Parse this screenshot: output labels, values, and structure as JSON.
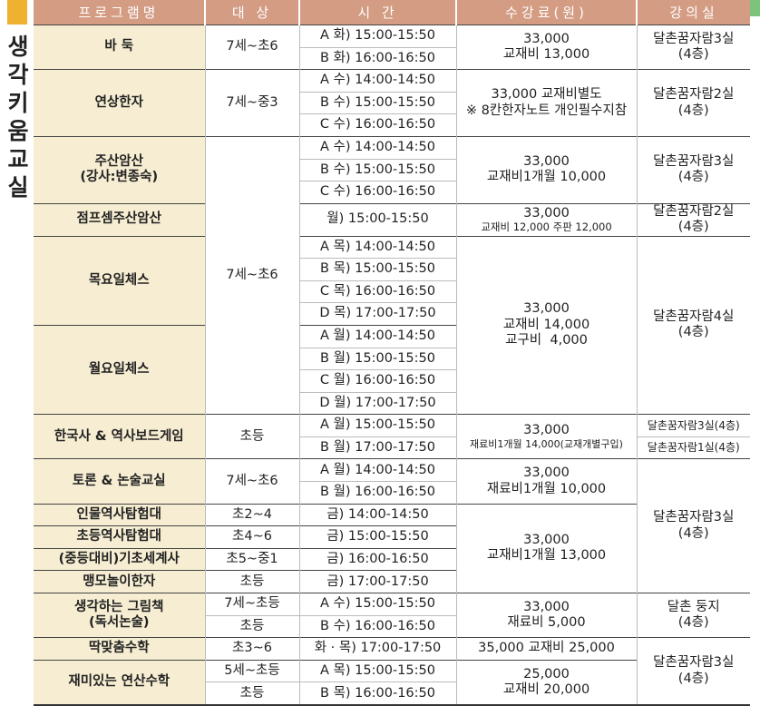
{
  "side_title": "생각키움교실",
  "headers": [
    "프로그램명",
    "대 상",
    "시 간",
    "수강료(원)",
    "강의실"
  ],
  "colors": {
    "header_bg": "#d39c83",
    "program_bg": "#f6edd2",
    "accent": "#f0b030"
  },
  "r": {
    "baduk": {
      "name": "바 둑",
      "target": "7세~초6",
      "times": [
        "A 화) 15:00-15:50",
        "B 화) 16:00-16:50"
      ],
      "fee1": "33,000",
      "fee2": "교재비 13,000",
      "room1": "달촌꿈자람3실",
      "room2": "(4층)"
    },
    "hanja": {
      "name": "연상한자",
      "target": "7세~중3",
      "times": [
        "A 수) 14:00-14:50",
        "B 수) 15:00-15:50",
        "C 수) 16:00-16:50"
      ],
      "fee1": "33,000 교재비별도",
      "fee2": "※ 8칸한자노트 개인필수지참",
      "room1": "달촌꿈자람2실",
      "room2": "(4층)"
    },
    "jusan": {
      "name1": "주산암산",
      "name2": "(강사:변종숙)",
      "target": "7세~초6",
      "times": [
        "A 수) 14:00-14:50",
        "B 수) 15:00-15:50",
        "C 수) 16:00-16:50"
      ],
      "fee1": "33,000",
      "fee2": "교재비1개월 10,000",
      "room1": "달촌꿈자람3실",
      "room2": "(4층)"
    },
    "jump": {
      "name": "점프셈주산암산",
      "time": "월) 15:00-15:50",
      "fee1": "33,000",
      "fee2": "교재비 12,000 주판 12,000",
      "room1": "달촌꿈자람2실",
      "room2": "(4층)"
    },
    "thu_chess": {
      "name": "목요일체스",
      "times": [
        "A 목) 14:00-14:50",
        "B 목) 15:00-15:50",
        "C 목) 16:00-16:50",
        "D 목) 17:00-17:50"
      ]
    },
    "mon_chess": {
      "name": "월요일체스",
      "times": [
        "A 월) 14:00-14:50",
        "B 월) 15:00-15:50",
        "C 월) 16:00-16:50",
        "D 월) 17:00-17:50"
      ]
    },
    "chess_fee": {
      "fee1": "33,000",
      "fee2": "교재비 14,000",
      "fee3": "교구비  4,000",
      "room1": "달촌꿈자람4실",
      "room2": "(4층)"
    },
    "history_game": {
      "name": "한국사 & 역사보드게임",
      "target": "초등",
      "times": [
        "A 월) 15:00-15:50",
        "B 월) 17:00-17:50"
      ],
      "fee1": "33,000",
      "fee2": "재료비1개월 14,000(교재개별구입)",
      "rooms": [
        "달촌꿈자람3실(4층)",
        "달촌꿈자람1실(4층)"
      ]
    },
    "debate": {
      "name": "토론 & 논술교실",
      "target": "7세~초6",
      "times": [
        "A 월) 14:00-14:50",
        "B 월) 16:00-16:50"
      ],
      "fee1": "33,000",
      "fee2": "재료비1개월 10,000",
      "room1": "달촌꿈자람3실",
      "room2": "(4층)"
    },
    "fri": [
      {
        "name": "인물역사탐험대",
        "target": "초2~4",
        "time": "금) 14:00-14:50"
      },
      {
        "name": "초등역사탐험대",
        "target": "초4~6",
        "time": "금) 15:00-15:50"
      },
      {
        "name": "(중등대비)기초세계사",
        "target": "초5~중1",
        "time": "금) 16:00-16:50"
      },
      {
        "name": "맹모놀이한자",
        "target": "초등",
        "time": "금) 17:00-17:50"
      }
    ],
    "fri_fee": {
      "fee1": "33,000",
      "fee2": "교재비1개월 13,000"
    },
    "picture_book": {
      "name1": "생각하는 그림책",
      "name2": "(독서논술)",
      "targets": [
        "7세~초등",
        "초등"
      ],
      "times": [
        "A 수) 15:00-15:50",
        "B 수) 16:00-16:50"
      ],
      "fee1": "33,000",
      "fee2": "재료비 5,000",
      "room1": "달촌 둥지",
      "room2": "(4층)"
    },
    "math_fit": {
      "name": "딱맞춤수학",
      "target": "초3~6",
      "time": "화 · 목) 17:00-17:50",
      "fee": "35,000 교재비 25,000"
    },
    "fun_math": {
      "name": "재미있는 연산수학",
      "targets": [
        "5세~초등",
        "초등"
      ],
      "times": [
        "A 목) 15:00-15:50",
        "B 목) 16:00-16:50"
      ],
      "fee1": "25,000",
      "fee2": "교재비 20,000"
    },
    "math_room": {
      "room1": "달촌꿈자람3실",
      "room2": "(4층)"
    }
  }
}
